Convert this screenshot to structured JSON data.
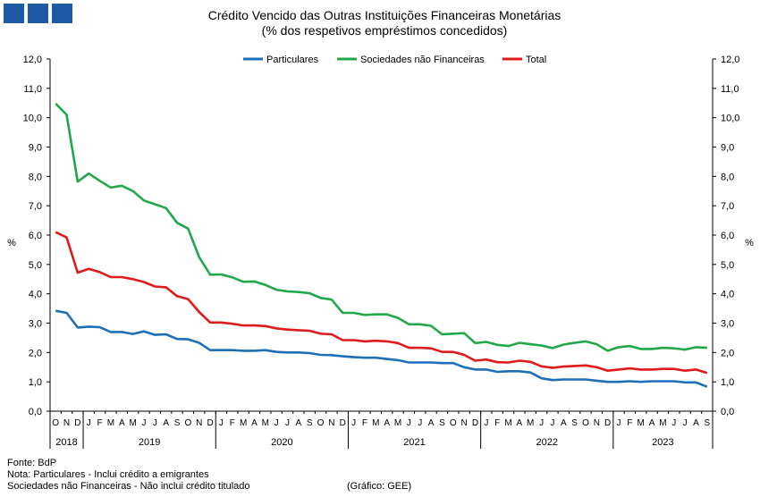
{
  "header": {
    "title": "Crédito Vencido das Outras Instituições Financeiras Monetárias",
    "subtitle": "(% dos respetivos empréstimos concedidos)"
  },
  "colors": {
    "logo": "#1f5aa6",
    "particulares": "#1f6fb8",
    "snf": "#20a84a",
    "total": "#e01b1b"
  },
  "chart_data": {
    "type": "line",
    "title": "Crédito Vencido das Outras Instituições Financeiras Monetárias",
    "subtitle": "(% dos respetivos empréstimos concedidos)",
    "ylabel": "%",
    "ylabel_right": "%",
    "ylim": [
      0,
      12
    ],
    "yticks": [
      "0,0",
      "1,0",
      "2,0",
      "3,0",
      "4,0",
      "5,0",
      "6,0",
      "7,0",
      "8,0",
      "9,0",
      "10,0",
      "11,0",
      "12,0"
    ],
    "grid": false,
    "legend_position": "top",
    "months": [
      "O",
      "N",
      "D",
      "J",
      "F",
      "M",
      "A",
      "M",
      "J",
      "J",
      "A",
      "S",
      "O",
      "N",
      "D",
      "J",
      "F",
      "M",
      "A",
      "M",
      "J",
      "J",
      "A",
      "S",
      "O",
      "N",
      "D",
      "J",
      "F",
      "M",
      "A",
      "M",
      "J",
      "J",
      "A",
      "S",
      "O",
      "N",
      "D",
      "J",
      "F",
      "M",
      "A",
      "M",
      "J",
      "J",
      "A",
      "S",
      "O",
      "N",
      "D",
      "J",
      "F",
      "M",
      "A",
      "M",
      "J",
      "J",
      "A",
      "S"
    ],
    "years": [
      {
        "label": "2018",
        "start": 0,
        "count": 3
      },
      {
        "label": "2019",
        "start": 3,
        "count": 12
      },
      {
        "label": "2020",
        "start": 15,
        "count": 12
      },
      {
        "label": "2021",
        "start": 27,
        "count": 12
      },
      {
        "label": "2022",
        "start": 39,
        "count": 12
      },
      {
        "label": "2023",
        "start": 51,
        "count": 9
      }
    ],
    "series": [
      {
        "name": "Particulares",
        "color": "#1f6fb8",
        "values": [
          3.42,
          3.35,
          2.85,
          2.88,
          2.86,
          2.7,
          2.7,
          2.63,
          2.72,
          2.6,
          2.62,
          2.46,
          2.45,
          2.33,
          2.08,
          2.08,
          2.08,
          2.06,
          2.06,
          2.08,
          2.02,
          2.0,
          2.0,
          1.98,
          1.92,
          1.91,
          1.87,
          1.84,
          1.82,
          1.82,
          1.78,
          1.74,
          1.66,
          1.66,
          1.66,
          1.64,
          1.64,
          1.5,
          1.42,
          1.42,
          1.34,
          1.36,
          1.36,
          1.32,
          1.12,
          1.06,
          1.08,
          1.08,
          1.08,
          1.04,
          1.0,
          1.0,
          1.02,
          1.0,
          1.02,
          1.02,
          1.02,
          0.98,
          0.98,
          0.83
        ]
      },
      {
        "name": "Sociedades não Financeiras",
        "color": "#20a84a",
        "values": [
          10.48,
          10.1,
          7.82,
          8.1,
          7.85,
          7.62,
          7.68,
          7.5,
          7.18,
          7.05,
          6.92,
          6.42,
          6.22,
          5.25,
          4.65,
          4.66,
          4.56,
          4.41,
          4.42,
          4.3,
          4.14,
          4.08,
          4.06,
          4.02,
          3.86,
          3.8,
          3.35,
          3.35,
          3.28,
          3.3,
          3.3,
          3.18,
          2.96,
          2.96,
          2.91,
          2.62,
          2.64,
          2.66,
          2.32,
          2.36,
          2.26,
          2.22,
          2.33,
          2.28,
          2.24,
          2.15,
          2.27,
          2.33,
          2.38,
          2.28,
          2.06,
          2.18,
          2.22,
          2.12,
          2.12,
          2.16,
          2.14,
          2.1,
          2.18,
          2.16
        ]
      },
      {
        "name": "Total",
        "color": "#e01b1b",
        "values": [
          6.1,
          5.92,
          4.72,
          4.85,
          4.74,
          4.57,
          4.57,
          4.5,
          4.4,
          4.25,
          4.22,
          3.92,
          3.82,
          3.38,
          3.02,
          3.02,
          2.98,
          2.92,
          2.92,
          2.9,
          2.82,
          2.78,
          2.76,
          2.74,
          2.64,
          2.62,
          2.42,
          2.42,
          2.38,
          2.4,
          2.38,
          2.32,
          2.16,
          2.16,
          2.14,
          2.02,
          2.02,
          1.92,
          1.72,
          1.76,
          1.67,
          1.66,
          1.72,
          1.68,
          1.53,
          1.48,
          1.52,
          1.54,
          1.56,
          1.5,
          1.38,
          1.42,
          1.46,
          1.42,
          1.42,
          1.44,
          1.44,
          1.38,
          1.42,
          1.3
        ]
      }
    ]
  },
  "footer": {
    "source": "Fonte: BdP",
    "note1": "Nota: Particulares - Inclui crédito a emigrantes",
    "note2": "Sociedades não Financeiras - Não inclui crédito titulado",
    "credit": "(Gráfico: GEE)"
  }
}
